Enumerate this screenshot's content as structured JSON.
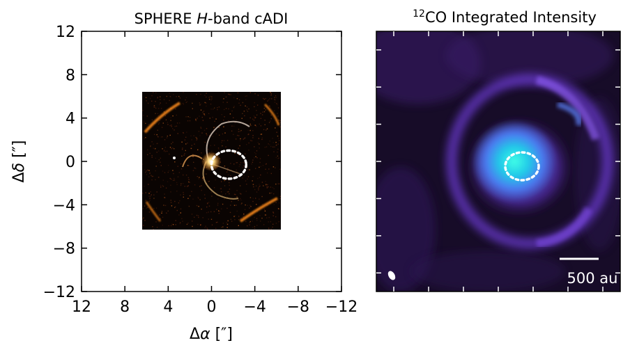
{
  "panels": [
    {
      "title_main": "SPHERE ",
      "title_italic": "H",
      "title_rest": "-band cADI",
      "xlabel_prefix": "Δ",
      "xlabel_italic": "α",
      "xlabel_unit": " [″]",
      "ylabel_prefix": "Δ",
      "ylabel_italic": "δ",
      "ylabel_unit": " [″]"
    },
    {
      "title_sup": "12",
      "title_rest": "CO Integrated Intensity",
      "scalebar_label": "500 au"
    }
  ],
  "chart_data": {
    "type": "heatmap",
    "x_ticks": [
      12,
      8,
      4,
      0,
      -4,
      -8,
      -12
    ],
    "x_tick_labels": [
      "12",
      "8",
      "4",
      "0",
      "−4",
      "−8",
      "−12"
    ],
    "y_ticks": [
      12,
      8,
      4,
      0,
      -4,
      -8,
      -12
    ],
    "y_tick_labels": [
      "12",
      "8",
      "4",
      "0",
      "−4",
      "−8",
      "−12"
    ],
    "xlim": [
      12,
      -12
    ],
    "ylim": [
      -12,
      12
    ],
    "image_extent": [
      6.4,
      -6.4,
      -6.4,
      6.4
    ],
    "ellipse_center": [
      -1.6,
      -0.3
    ],
    "ellipse_radii": [
      1.6,
      1.3
    ],
    "colors": {
      "sphere_bg": "#0a0402",
      "sphere_emission": "#ff8c1a",
      "co_bg": "#1a0d2e",
      "co_ring": "#7a3fd8",
      "co_core": "#3fffe6",
      "marker": "#ffffff"
    }
  }
}
